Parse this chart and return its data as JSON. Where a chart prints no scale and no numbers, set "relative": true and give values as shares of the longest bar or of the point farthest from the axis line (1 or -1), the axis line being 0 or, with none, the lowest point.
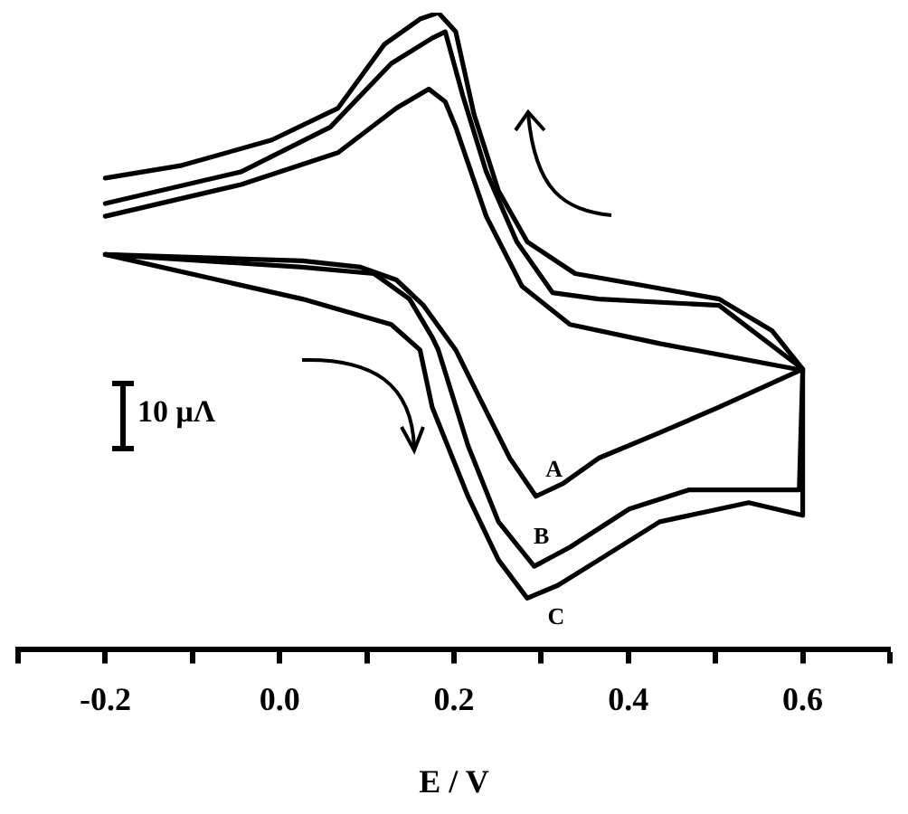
{
  "chart_data": {
    "type": "line",
    "xlabel": "E / V",
    "relative": true,
    "grid": false,
    "legend": false,
    "marker": "none",
    "line_style": "solid",
    "tick_labels": "x",
    "xlim": [
      -0.3,
      0.7
    ],
    "xticks": [
      {
        "value": -0.3,
        "label": null
      },
      -0.2,
      {
        "value": -0.1,
        "label": null
      },
      {
        "value": 0,
        "label": "0.0"
      },
      {
        "value": 0.1,
        "label": null
      },
      0.2,
      {
        "value": 0.3,
        "label": null
      },
      0.4,
      {
        "value": 0.5,
        "label": null
      },
      0.6,
      {
        "value": 0.7,
        "label": null
      }
    ],
    "annotations": [
      "10 μΛ"
    ],
    "series": [
      {
        "name": "A",
        "color": "#000000",
        "x": [
          -0.2,
          0.026,
          0.093,
          0.134,
          0.165,
          0.202,
          0.231,
          0.264,
          0.294,
          0.325,
          0.366,
          0.436,
          0.504,
          0.6,
          0.592,
          0.436,
          0.333,
          0.278,
          0.237,
          0.202,
          0.19,
          0.171,
          0.134,
          0.067,
          -0.044,
          -0.2
        ],
        "values": [
          0.62,
          0.61,
          0.6,
          0.58,
          0.54,
          0.47,
          0.39,
          0.3,
          0.24,
          0.26,
          0.3,
          0.34,
          0.38,
          0.44,
          0.44,
          0.48,
          0.51,
          0.57,
          0.68,
          0.82,
          0.86,
          0.88,
          0.85,
          0.78,
          0.73,
          0.68
        ]
      },
      {
        "name": "B",
        "color": "#000000",
        "x": [
          -0.2,
          0.026,
          0.108,
          0.149,
          0.175,
          0.182,
          0.216,
          0.251,
          0.292,
          0.333,
          0.401,
          0.469,
          0.538,
          0.596,
          0.6,
          0.504,
          0.366,
          0.313,
          0.272,
          0.237,
          0.21,
          0.19,
          0.175,
          0.128,
          0.058,
          -0.044,
          -0.2
        ],
        "values": [
          0.62,
          0.6,
          0.59,
          0.55,
          0.49,
          0.47,
          0.32,
          0.2,
          0.13,
          0.16,
          0.22,
          0.25,
          0.25,
          0.25,
          0.44,
          0.54,
          0.55,
          0.56,
          0.64,
          0.75,
          0.87,
          0.97,
          0.96,
          0.92,
          0.82,
          0.75,
          0.7
        ]
      },
      {
        "name": "C",
        "color": "#000000",
        "x": [
          -0.2,
          0.026,
          0.128,
          0.161,
          0.175,
          0.216,
          0.251,
          0.284,
          0.319,
          0.366,
          0.436,
          0.538,
          0.6,
          0.6,
          0.565,
          0.504,
          0.422,
          0.339,
          0.284,
          0.251,
          0.223,
          0.202,
          0.182,
          0.161,
          0.12,
          0.067,
          -0.009,
          -0.112,
          -0.2
        ],
        "values": [
          0.62,
          0.55,
          0.51,
          0.47,
          0.38,
          0.24,
          0.14,
          0.08,
          0.1,
          0.14,
          0.2,
          0.23,
          0.21,
          0.44,
          0.5,
          0.55,
          0.57,
          0.59,
          0.64,
          0.72,
          0.84,
          0.97,
          1,
          0.99,
          0.95,
          0.85,
          0.8,
          0.76,
          0.74
        ]
      }
    ]
  }
}
